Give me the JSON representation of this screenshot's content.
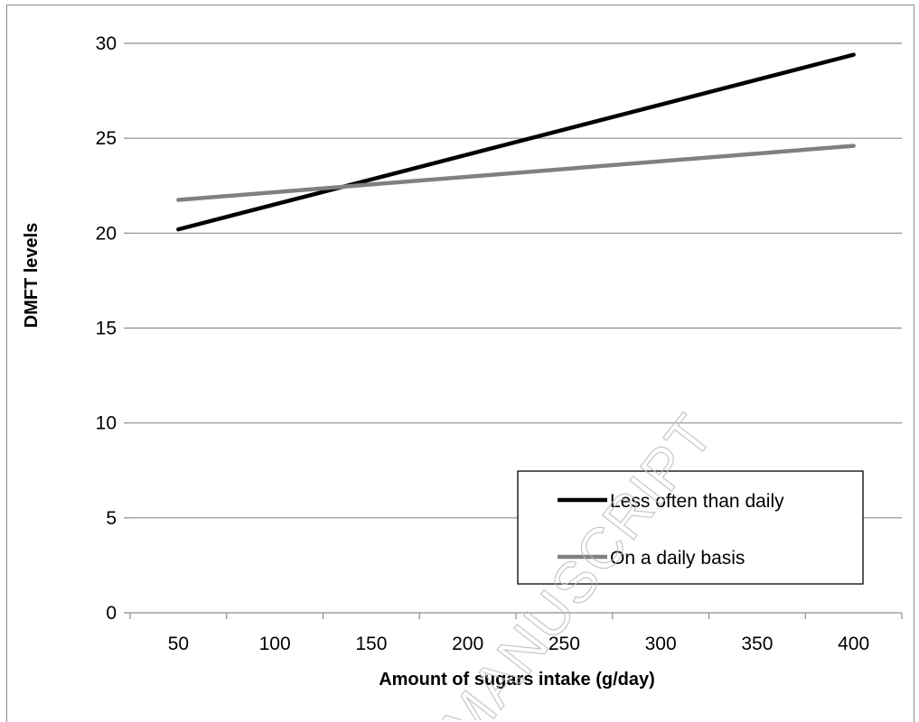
{
  "chart_data": {
    "type": "line",
    "title": "",
    "xlabel": "Amount of sugars intake (g/day)",
    "ylabel": "DMFT levels",
    "x": [
      50,
      400
    ],
    "x_ticks": [
      50,
      100,
      150,
      200,
      250,
      300,
      350,
      400
    ],
    "ylim": [
      0,
      30
    ],
    "y_ticks": [
      0,
      5,
      10,
      15,
      20,
      25,
      30
    ],
    "grid": "horizontal",
    "legend_position": "bottom-right",
    "series": [
      {
        "name": "Less often than daily",
        "color": "#000000",
        "values": [
          20.2,
          29.4
        ]
      },
      {
        "name": "On a daily basis",
        "color": "#808080",
        "values": [
          21.75,
          24.6
        ]
      }
    ]
  },
  "watermark": "MANUSCRIPT"
}
